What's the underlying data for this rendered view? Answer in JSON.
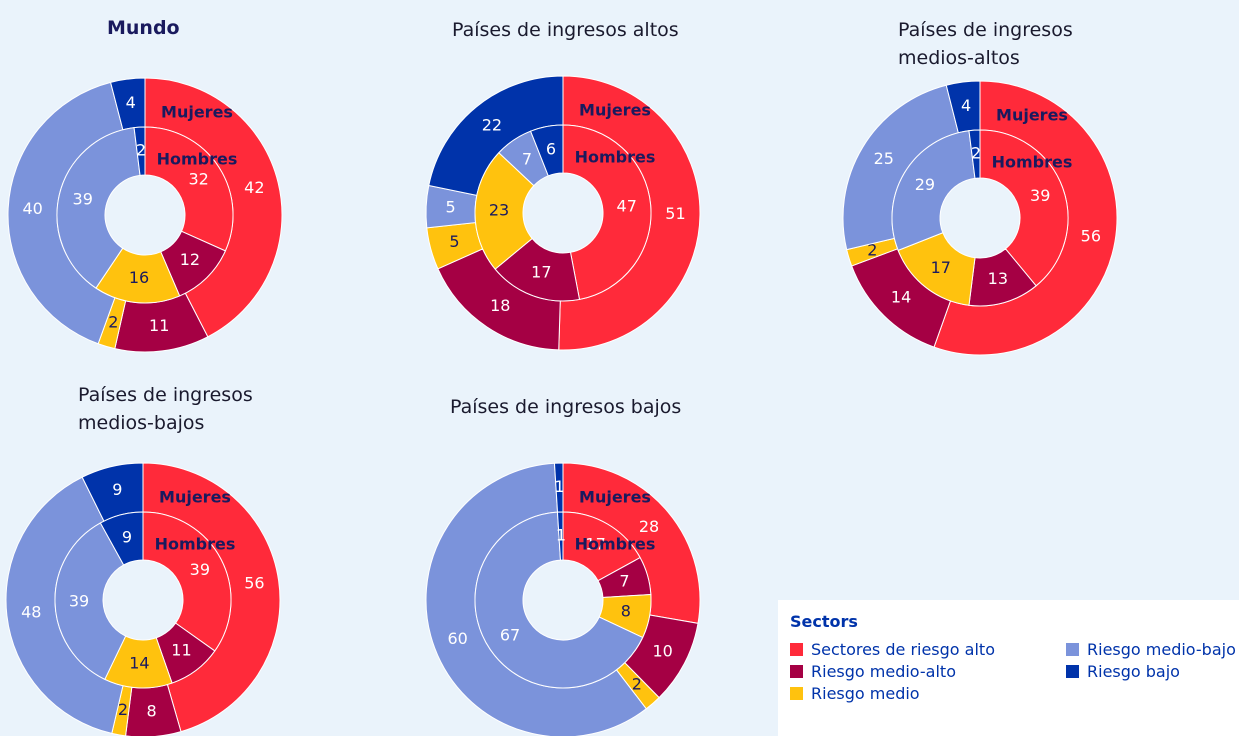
{
  "legend": {
    "title": "Sectors",
    "categories": [
      "Sectores de riesgo alto",
      "Riesgo medio-alto",
      "Riesgo medio",
      "Riesgo medio-bajo",
      "Riesgo bajo"
    ],
    "colors": [
      "#ff2a3a",
      "#a50044",
      "#ffc20e",
      "#7b93db",
      "#0033aa"
    ]
  },
  "chart_data": [
    {
      "type": "donut",
      "title": "Mundo",
      "series": [
        {
          "name": "Mujeres",
          "values": [
            42,
            11,
            2,
            40,
            4
          ]
        },
        {
          "name": "Hombres",
          "values": [
            32,
            12,
            16,
            39,
            2
          ]
        }
      ]
    },
    {
      "type": "donut",
      "title": "Países de ingresos altos",
      "series": [
        {
          "name": "Mujeres",
          "values": [
            51,
            18,
            5,
            5,
            22
          ]
        },
        {
          "name": "Hombres",
          "values": [
            47,
            17,
            23,
            7,
            6
          ]
        }
      ]
    },
    {
      "type": "donut",
      "title": "Países de ingresos medios-altos",
      "series": [
        {
          "name": "Mujeres",
          "values": [
            56,
            14,
            2,
            25,
            4
          ]
        },
        {
          "name": "Hombres",
          "values": [
            39,
            13,
            17,
            29,
            2
          ]
        }
      ]
    },
    {
      "type": "donut",
      "title": "Países de ingresos medios-bajos",
      "series": [
        {
          "name": "Mujeres",
          "values": [
            56,
            8,
            2,
            48,
            9
          ]
        },
        {
          "name": "Hombres",
          "values": [
            39,
            11,
            14,
            39,
            9
          ]
        }
      ]
    },
    {
      "type": "donut",
      "title": "Países de ingresos bajos",
      "series": [
        {
          "name": "Mujeres",
          "values": [
            28,
            10,
            2,
            60,
            1
          ]
        },
        {
          "name": "Hombres",
          "values": [
            17,
            7,
            8,
            67,
            1
          ]
        }
      ]
    }
  ]
}
